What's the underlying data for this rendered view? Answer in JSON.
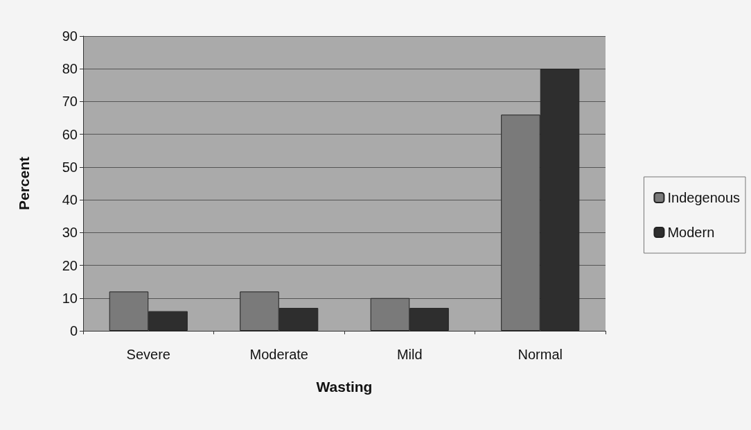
{
  "chart_data": {
    "type": "bar",
    "xlabel": "Wasting",
    "ylabel": "Percent",
    "categories": [
      "Severe",
      "Moderate",
      "Mild",
      "Normal"
    ],
    "series": [
      {
        "name": "Indegenous",
        "color": "#7a7a7a",
        "values": [
          12,
          12,
          10,
          66
        ]
      },
      {
        "name": "Modern",
        "color": "#2e2e2e",
        "values": [
          6,
          7,
          7,
          80
        ]
      }
    ],
    "ylim": [
      0,
      90
    ],
    "yticks": [
      0,
      10,
      20,
      30,
      40,
      50,
      60,
      70,
      80,
      90
    ],
    "grid": "y",
    "legend": "right"
  }
}
